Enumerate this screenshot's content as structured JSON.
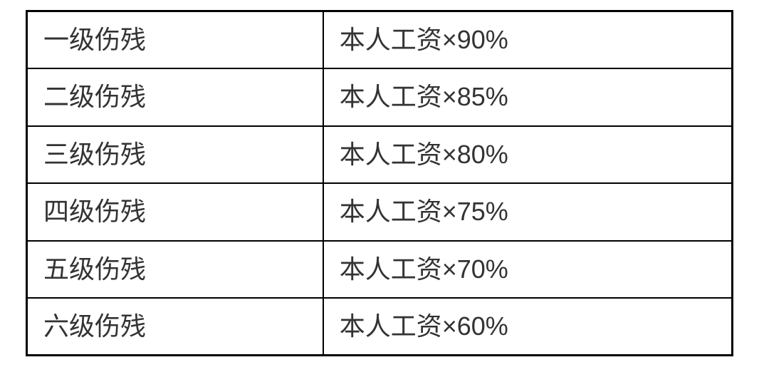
{
  "table": {
    "type": "table",
    "background_color": "#ffffff",
    "border_color": "#000000",
    "text_color": "#333333",
    "font_size_pt": 27,
    "columns": [
      {
        "key": "level",
        "width_pct": 42,
        "align": "left"
      },
      {
        "key": "formula",
        "width_pct": 58,
        "align": "left"
      }
    ],
    "rows": [
      {
        "level": "一级伤残",
        "formula": "本人工资×90%"
      },
      {
        "level": "二级伤残",
        "formula": "本人工资×85%"
      },
      {
        "level": "三级伤残",
        "formula": "本人工资×80%"
      },
      {
        "level": "四级伤残",
        "formula": "本人工资×75%"
      },
      {
        "level": "五级伤残",
        "formula": "本人工资×70%"
      },
      {
        "level": "六级伤残",
        "formula": "本人工资×60%"
      }
    ]
  }
}
